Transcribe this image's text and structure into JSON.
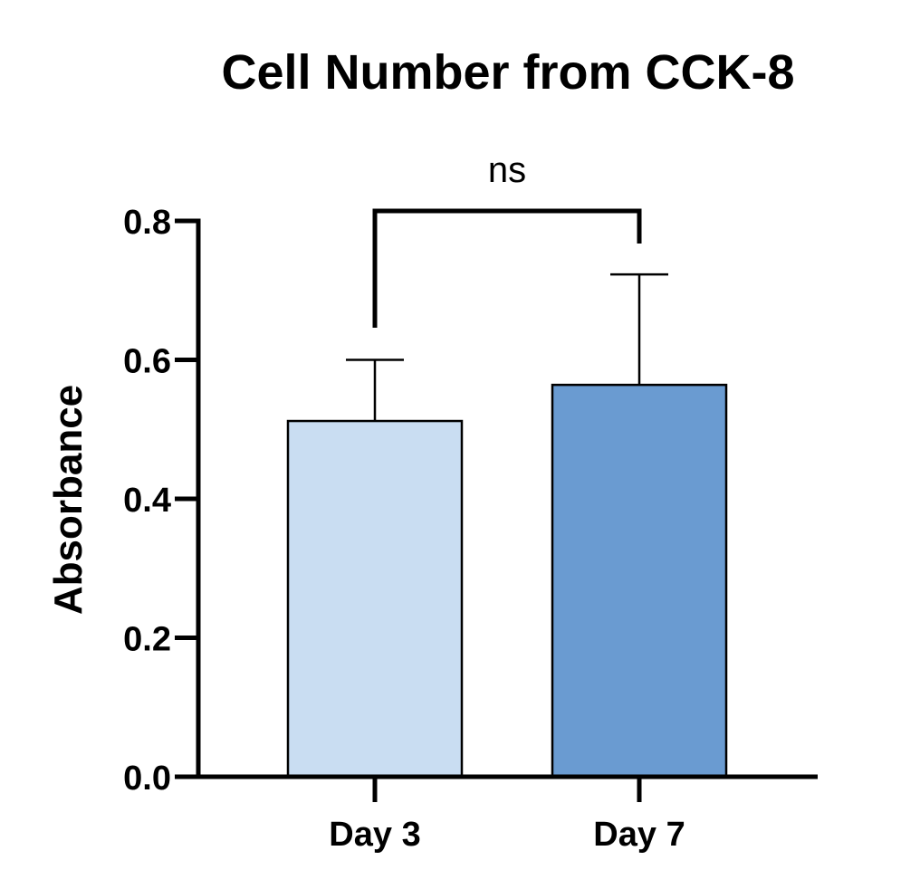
{
  "chart_data": {
    "type": "bar",
    "title": "Cell Number from CCK-8",
    "xlabel": "",
    "ylabel": "Absorbance",
    "ylim": [
      0,
      0.8
    ],
    "yticks": [
      "0.0",
      "0.2",
      "0.4",
      "0.6",
      "0.8"
    ],
    "ytick_values": [
      0,
      0.2,
      0.4,
      0.6,
      0.8
    ],
    "categories": [
      "Day 3",
      "Day 7"
    ],
    "values": [
      0.512,
      0.564
    ],
    "error_upper": [
      0.6,
      0.723
    ],
    "colors": [
      "#c9ddf2",
      "#6a9bd1"
    ],
    "grid": false,
    "significance": {
      "label": "ns",
      "from": "Day 3",
      "to": "Day 7"
    }
  }
}
